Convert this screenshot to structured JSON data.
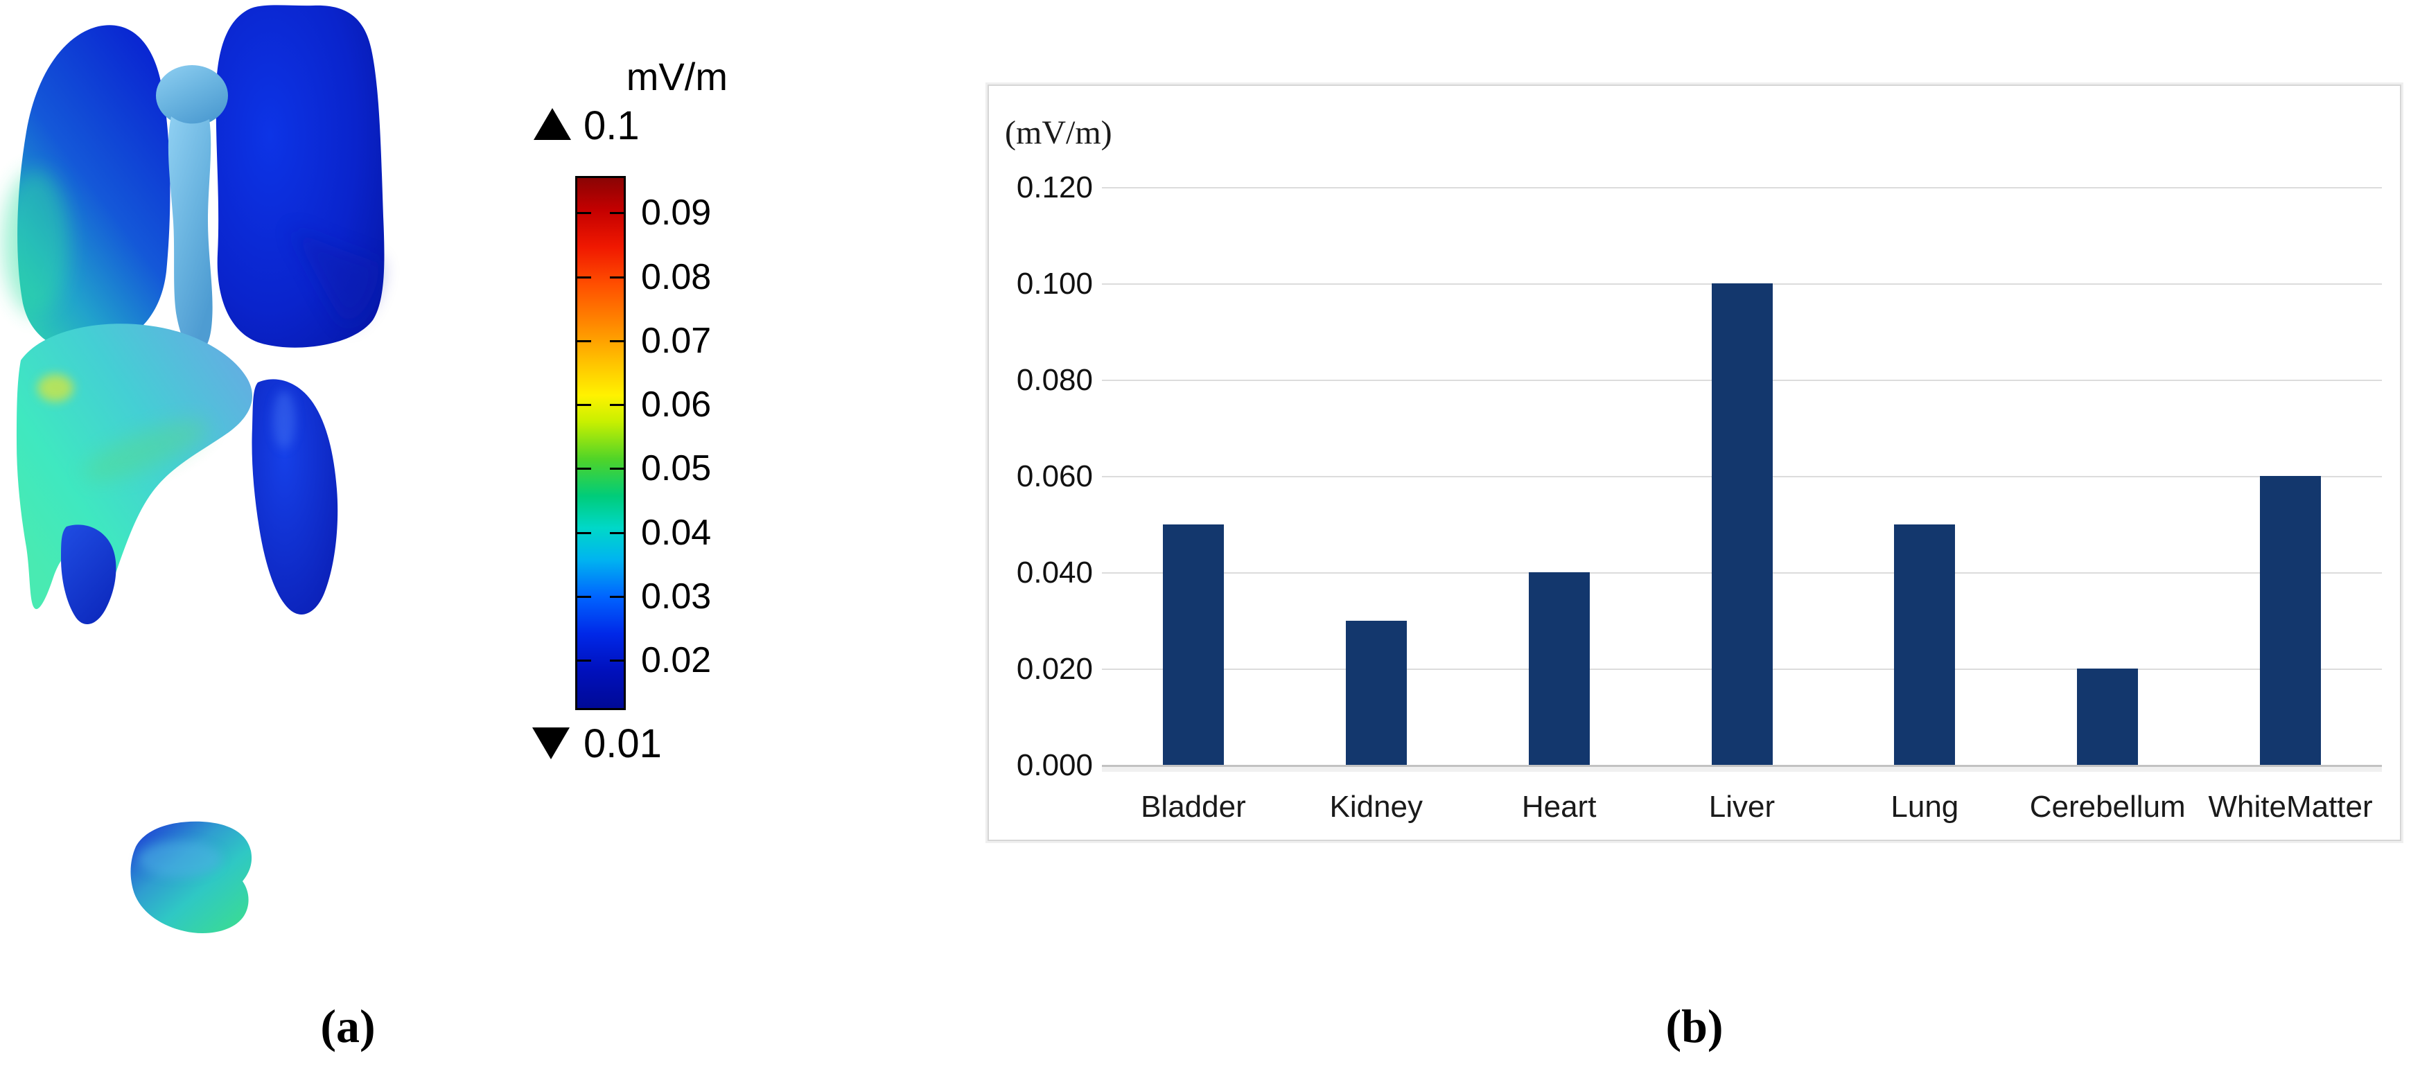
{
  "panels": {
    "a_label": "(a)",
    "b_label": "(b)"
  },
  "colorbar": {
    "unit_label": "mV/m",
    "max_label": "0.1",
    "min_label": "0.01",
    "tick_labels": [
      "0.09",
      "0.08",
      "0.07",
      "0.06",
      "0.05",
      "0.04",
      "0.03",
      "0.02"
    ],
    "tick_positions": [
      0.066,
      0.187,
      0.307,
      0.428,
      0.548,
      0.669,
      0.789,
      0.91
    ],
    "colormap_name": "rainbow-jet",
    "gradient_stops": [
      {
        "c": "#8a0404",
        "p": 0
      },
      {
        "c": "#c40000",
        "p": 6
      },
      {
        "c": "#f01800",
        "p": 13
      },
      {
        "c": "#ff4e00",
        "p": 20
      },
      {
        "c": "#ff8c00",
        "p": 28
      },
      {
        "c": "#ffc400",
        "p": 35
      },
      {
        "c": "#fff200",
        "p": 41
      },
      {
        "c": "#c8f000",
        "p": 46
      },
      {
        "c": "#50d428",
        "p": 53
      },
      {
        "c": "#00cc7a",
        "p": 60
      },
      {
        "c": "#00d8c8",
        "p": 66
      },
      {
        "c": "#00b4f0",
        "p": 72
      },
      {
        "c": "#0064ff",
        "p": 79
      },
      {
        "c": "#0028e8",
        "p": 86
      },
      {
        "c": "#0010bc",
        "p": 93
      },
      {
        "c": "#000a96",
        "p": 100
      }
    ]
  },
  "chart_data": {
    "type": "bar",
    "title": "",
    "ylabel": "(mV/m)",
    "xlabel": "",
    "categories": [
      "Bladder",
      "Kidney",
      "Heart",
      "Liver",
      "Lung",
      "Cerebellum",
      "WhiteMatter"
    ],
    "values": [
      0.05,
      0.03,
      0.04,
      0.1,
      0.05,
      0.02,
      0.06
    ],
    "ylim": [
      0,
      0.12
    ],
    "ytick_step": 0.02,
    "ytick_labels": [
      "0.000",
      "0.020",
      "0.040",
      "0.060",
      "0.080",
      "0.100",
      "0.120"
    ],
    "grid": true,
    "legend_position": "none",
    "bar_color": "#13376d",
    "grid_color": "#dcdcdc",
    "axis_line_color": "#c2c2c2",
    "box_border_color": "#d6d6d6"
  }
}
